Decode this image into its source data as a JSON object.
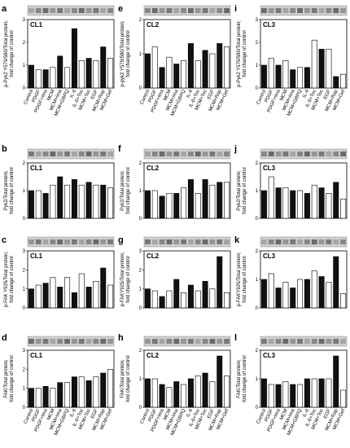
{
  "chart_data": [
    {
      "type": "bar",
      "panel": "a",
      "cell_line": "CL1",
      "ylabel": [
        "p-Pyk2 Y579/580/Total protein;",
        "fold change of control"
      ],
      "categories": [
        "Control",
        "PDGF",
        "PDGF+Ima",
        "MCM",
        "MCM+Ima",
        "MCM+GBPQ",
        "IL-6",
        "IL-6+Toc",
        "MCM+Toc",
        "EGF",
        "MCM+Rap",
        "MCM+Gef"
      ],
      "values": [
        1,
        0.8,
        0.8,
        0.9,
        1.4,
        0.9,
        2.6,
        1.2,
        1.3,
        1.2,
        1.8,
        1.3
      ],
      "colors": [
        "#111111",
        "#ffffff"
      ],
      "ylim": [
        0,
        3
      ],
      "yticks": [
        0,
        1,
        2,
        3
      ]
    },
    {
      "type": "bar",
      "panel": "b",
      "cell_line": "CL1",
      "ylabel": [
        "Pyk2/Total protein;",
        "fold change of control"
      ],
      "values": [
        1,
        1,
        0.9,
        1.2,
        1.5,
        1.2,
        1.4,
        1.2,
        1.3,
        1.2,
        1.2,
        1.1
      ],
      "colors": [
        "#111111",
        "#ffffff"
      ],
      "ylim": [
        0,
        2
      ],
      "yticks": [
        0,
        1,
        2
      ]
    },
    {
      "type": "bar",
      "panel": "c",
      "cell_line": "CL1",
      "ylabel": [
        "p-FAK Y925/Total protein;",
        "fold change of control"
      ],
      "values": [
        1,
        1.2,
        1.3,
        1.6,
        1.1,
        1.6,
        0.8,
        1.8,
        1.1,
        1.4,
        2.1,
        1.2
      ],
      "colors": [
        "#111111",
        "#ffffff"
      ],
      "ylim": [
        0,
        3
      ],
      "yticks": [
        0,
        1,
        2,
        3
      ]
    },
    {
      "type": "bar",
      "panel": "d",
      "cell_line": "CL1",
      "ylabel": [
        "FAK/Total protein;",
        "fold change of control"
      ],
      "categories": [
        "Control",
        "PDGF",
        "PDGF+Ima",
        "MCM",
        "MCM+Ima",
        "MCM+GBPQ",
        "IL-6",
        "IL-6+Toc",
        "MCM+Toc",
        "EGF",
        "MCM+Rap",
        "MCM+Gef"
      ],
      "values": [
        1,
        1,
        1.1,
        1,
        1.3,
        1.3,
        1.6,
        1.6,
        1.4,
        1.6,
        1.8,
        2
      ],
      "colors": [
        "#111111",
        "#ffffff"
      ],
      "ylim": [
        0,
        3
      ],
      "yticks": [
        0,
        1,
        2,
        3
      ]
    },
    {
      "type": "bar",
      "panel": "e",
      "cell_line": "CL2",
      "ylabel": [
        "p-pyk2 Y579/580/Total protein;",
        "fold change of control"
      ],
      "categories": [
        "Control",
        "PDGF",
        "PDGF+Ima",
        "MCM",
        "MCM+Ima",
        "MCM+GBPQ",
        "IL-6",
        "IL-6+Toc",
        "MCM+Toc",
        "EGF",
        "MCM+Rap",
        "MCM+Gef"
      ],
      "values": [
        1,
        1.2,
        0.6,
        0.9,
        0.7,
        0.8,
        1.3,
        0.8,
        1.1,
        1,
        1.3,
        1.2
      ],
      "colors": [
        "#111111",
        "#ffffff"
      ],
      "ylim": [
        0,
        2
      ],
      "yticks": [
        0,
        1,
        2
      ]
    },
    {
      "type": "bar",
      "panel": "f",
      "cell_line": "CL2",
      "ylabel": [
        "Pyk2/Total protein;",
        "fold change of control"
      ],
      "values": [
        1,
        1,
        0.8,
        0.9,
        0.9,
        1.1,
        1.4,
        0.9,
        1.4,
        1.2,
        1.3,
        1.3
      ],
      "colors": [
        "#111111",
        "#ffffff"
      ],
      "ylim": [
        0,
        2
      ],
      "yticks": [
        0,
        1,
        2
      ]
    },
    {
      "type": "bar",
      "panel": "g",
      "cell_line": "CL2",
      "ylabel": [
        "p-FAKY925/Total protein;",
        "fold change of control"
      ],
      "values": [
        1,
        0.9,
        0.6,
        0.9,
        1.5,
        0.8,
        1.2,
        0.9,
        1.4,
        1,
        2.7,
        0.8
      ],
      "colors": [
        "#111111",
        "#ffffff"
      ],
      "ylim": [
        0,
        3
      ],
      "yticks": [
        0,
        1,
        2,
        3
      ]
    },
    {
      "type": "bar",
      "panel": "h",
      "cell_line": "CL2",
      "ylabel": [
        "FAK/Total protein;",
        "fold change of control"
      ],
      "categories": [
        "Control",
        "PDGF",
        "PDGF+Ima",
        "MCM",
        "MCM+Ima",
        "MCM+GBPQ",
        "IL-6",
        "IL-6+Toc",
        "MCM+Toc",
        "EGF",
        "MCM+Rap",
        "MCM+Gef"
      ],
      "values": [
        1,
        1,
        0.8,
        0.7,
        0.9,
        0.8,
        1,
        1.1,
        1.2,
        0.9,
        1.8,
        1.1
      ],
      "colors": [
        "#111111",
        "#ffffff"
      ],
      "ylim": [
        0,
        2
      ],
      "yticks": [
        0,
        1,
        2
      ]
    },
    {
      "type": "bar",
      "panel": "i",
      "cell_line": "CL3",
      "ylabel": [
        "p-Pyk2 Y579/580/Total protein;",
        "fold change of control"
      ],
      "categories": [
        "Control",
        "PDGF",
        "PDGF+Ima",
        "MCM",
        "MCM+Ima",
        "MCM+GBPQ",
        "IL-6",
        "IL-6+Toc",
        "MCM+Toc",
        "EGF",
        "MCM+Rap",
        "MCM+Gef"
      ],
      "values": [
        1,
        1.3,
        1,
        1.2,
        0.8,
        0.9,
        0.9,
        2.1,
        1.7,
        1.7,
        0.5,
        0.6
      ],
      "colors": [
        "#111111",
        "#ffffff"
      ],
      "ylim": [
        0,
        3
      ],
      "yticks": [
        0,
        1,
        2,
        3
      ]
    },
    {
      "type": "bar",
      "panel": "j",
      "cell_line": "CL3",
      "ylabel": [
        "Pyk2/Total protein;",
        "fold change of control"
      ],
      "values": [
        1,
        1.5,
        1.1,
        1.1,
        1,
        1,
        0.9,
        1.2,
        1.1,
        0.9,
        1.3,
        0.7
      ],
      "colors": [
        "#111111",
        "#ffffff"
      ],
      "ylim": [
        0,
        2
      ],
      "yticks": [
        0,
        1,
        2
      ]
    },
    {
      "type": "bar",
      "panel": "k",
      "cell_line": "CL3",
      "ylabel": [
        "p-FAKY925/Total protein;",
        "fold change of control"
      ],
      "values": [
        1,
        1.2,
        0.7,
        0.9,
        0.7,
        1,
        1,
        1.3,
        1.1,
        0.9,
        1.8,
        0.5
      ],
      "colors": [
        "#111111",
        "#ffffff"
      ],
      "ylim": [
        0,
        2
      ],
      "yticks": [
        0,
        1,
        2
      ]
    },
    {
      "type": "bar",
      "panel": "l",
      "cell_line": "CL3",
      "ylabel": [
        "FAK/Total protein;",
        "fold change of control"
      ],
      "categories": [
        "Control",
        "PDGF",
        "PDGF+Ima",
        "MCM",
        "MCM+Ima",
        "MCM+GBPQ",
        "IL-6",
        "IL-6+Toc",
        "MCM+Toc",
        "EGF",
        "MCM+Rap",
        "MCM+Gef"
      ],
      "values": [
        1,
        0.8,
        0.8,
        0.9,
        0.8,
        0.8,
        1,
        1,
        1,
        1,
        1.8,
        0.6
      ],
      "colors": [
        "#111111",
        "#ffffff"
      ],
      "ylim": [
        0,
        2
      ],
      "yticks": [
        0,
        1,
        2
      ]
    }
  ]
}
